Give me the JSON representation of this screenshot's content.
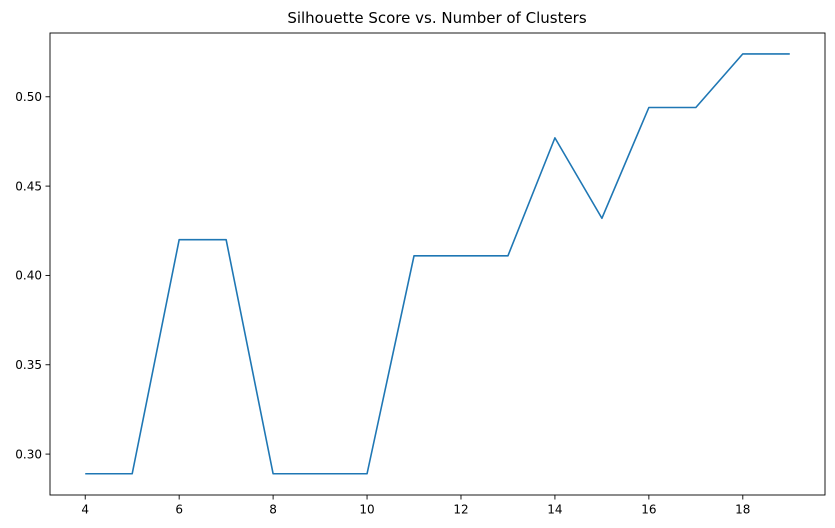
{
  "chart_data": {
    "type": "line",
    "title": "Silhouette Score vs. Number of Clusters",
    "xlabel": "",
    "ylabel": "",
    "x": [
      4,
      5,
      6,
      7,
      8,
      9,
      10,
      11,
      12,
      13,
      14,
      15,
      16,
      17,
      18,
      19
    ],
    "series": [
      {
        "values": [
          0.289,
          0.289,
          0.42,
          0.42,
          0.289,
          0.289,
          0.289,
          0.411,
          0.411,
          0.411,
          0.477,
          0.432,
          0.494,
          0.494,
          0.524,
          0.524
        ],
        "color": "#1f77b4"
      }
    ],
    "xlim": [
      3.25,
      19.75
    ],
    "ylim": [
      0.2771,
      0.5357
    ],
    "xticks": [
      4,
      6,
      8,
      10,
      12,
      14,
      16,
      18
    ],
    "xtick_labels": [
      "4",
      "6",
      "8",
      "10",
      "12",
      "14",
      "16",
      "18"
    ],
    "yticks": [
      0.3,
      0.35,
      0.4,
      0.45,
      0.5
    ],
    "ytick_labels": [
      "0.30",
      "0.35",
      "0.40",
      "0.45",
      "0.50"
    ],
    "grid": false,
    "legend": "none"
  }
}
